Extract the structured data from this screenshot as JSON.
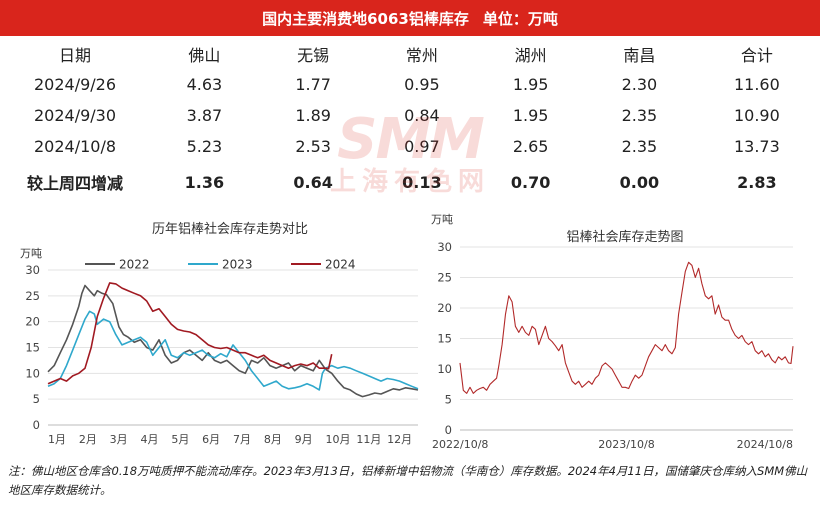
{
  "header": {
    "title": "国内主要消费地6063铝棒库存",
    "unit": "单位：万吨"
  },
  "table": {
    "columns": [
      "日期",
      "佛山",
      "无锡",
      "常州",
      "湖州",
      "南昌",
      "合计"
    ],
    "rows": [
      [
        "2024/9/26",
        "4.63",
        "1.77",
        "0.95",
        "1.95",
        "2.30",
        "11.60"
      ],
      [
        "2024/9/30",
        "3.87",
        "1.89",
        "0.84",
        "1.95",
        "2.35",
        "10.90"
      ],
      [
        "2024/10/8",
        "5.23",
        "2.53",
        "0.97",
        "2.65",
        "2.35",
        "13.73"
      ]
    ],
    "change_row": [
      "较上周四增减",
      "1.36",
      "0.64",
      "0.13",
      "0.70",
      "0.00",
      "2.83"
    ]
  },
  "watermark": {
    "text": "SMM",
    "subtext": "上海有色网"
  },
  "chart_data": [
    {
      "type": "line",
      "title": "历年铝棒社会库存走势对比",
      "ylabel": "万吨",
      "ylim": [
        0,
        30
      ],
      "yticks": [
        "0",
        "5",
        "10",
        "15",
        "20",
        "25",
        "30"
      ],
      "x_domain": [
        1,
        13
      ],
      "xticks": [
        "1月",
        "2月",
        "3月",
        "4月",
        "5月",
        "6月",
        "7月",
        "8月",
        "9月",
        "10月",
        "11月",
        "12月"
      ],
      "legend_position": "top",
      "series": [
        {
          "name": "2022",
          "color": "#555555",
          "x": [
            1.0,
            1.2,
            1.4,
            1.6,
            1.8,
            2.0,
            2.1,
            2.2,
            2.35,
            2.5,
            2.6,
            2.75,
            2.9,
            3.1,
            3.3,
            3.45,
            3.6,
            3.8,
            4.0,
            4.2,
            4.4,
            4.6,
            4.8,
            5.0,
            5.2,
            5.4,
            5.6,
            5.8,
            6.0,
            6.2,
            6.4,
            6.6,
            6.8,
            7.0,
            7.2,
            7.4,
            7.6,
            7.8,
            8.0,
            8.2,
            8.4,
            8.6,
            8.8,
            9.0,
            9.2,
            9.4,
            9.6,
            9.8,
            10.0,
            10.2,
            10.4,
            10.6,
            10.8,
            11.0,
            11.2,
            11.4,
            11.6,
            11.8,
            12.0,
            12.2,
            12.4,
            12.6,
            12.8,
            13.0
          ],
          "values": [
            10.3,
            11.5,
            14.0,
            16.5,
            19.5,
            23.0,
            25.5,
            27.0,
            26.0,
            25.0,
            26.0,
            25.5,
            25.2,
            23.5,
            19.0,
            17.5,
            17.0,
            16.0,
            16.5,
            15.0,
            14.5,
            16.5,
            13.5,
            12.0,
            12.5,
            14.0,
            14.5,
            13.5,
            12.5,
            14.0,
            12.5,
            12.0,
            12.5,
            11.5,
            10.5,
            10.0,
            12.5,
            12.0,
            13.0,
            11.5,
            11.0,
            11.5,
            12.0,
            10.5,
            11.5,
            11.0,
            10.5,
            12.5,
            10.8,
            10.0,
            8.5,
            7.2,
            6.8,
            6.0,
            5.5,
            5.8,
            6.2,
            6.0,
            6.5,
            7.0,
            6.8,
            7.2,
            7.0,
            6.8
          ]
        },
        {
          "name": "2023",
          "color": "#2fa8cc",
          "x": [
            1.0,
            1.2,
            1.4,
            1.6,
            1.8,
            2.0,
            2.1,
            2.2,
            2.35,
            2.5,
            2.6,
            2.8,
            3.0,
            3.2,
            3.4,
            3.6,
            3.8,
            4.0,
            4.2,
            4.4,
            4.6,
            4.8,
            5.0,
            5.2,
            5.4,
            5.6,
            5.8,
            6.0,
            6.2,
            6.4,
            6.6,
            6.8,
            7.0,
            7.2,
            7.4,
            7.6,
            7.8,
            8.0,
            8.2,
            8.4,
            8.6,
            8.8,
            9.0,
            9.2,
            9.4,
            9.6,
            9.8,
            9.9,
            10.0,
            10.2,
            10.4,
            10.6,
            10.8,
            11.0,
            11.2,
            11.4,
            11.6,
            11.8,
            12.0,
            12.2,
            12.4,
            12.6,
            12.8,
            13.0
          ],
          "values": [
            7.5,
            8.0,
            9.0,
            11.5,
            14.5,
            17.5,
            19.0,
            20.5,
            22.0,
            21.5,
            19.5,
            20.5,
            20.0,
            17.5,
            15.5,
            16.0,
            16.5,
            17.0,
            16.0,
            13.5,
            15.0,
            16.5,
            13.5,
            13.0,
            14.0,
            13.5,
            14.0,
            14.5,
            13.5,
            13.0,
            13.8,
            13.2,
            15.5,
            14.0,
            12.5,
            10.5,
            9.0,
            7.5,
            8.0,
            8.5,
            7.5,
            7.0,
            7.2,
            7.5,
            8.0,
            7.5,
            6.8,
            10.0,
            11.0,
            11.5,
            11.0,
            11.3,
            11.0,
            10.5,
            10.0,
            9.5,
            9.0,
            8.5,
            9.0,
            8.8,
            8.5,
            8.0,
            7.5,
            7.0
          ]
        },
        {
          "name": "2024",
          "color": "#a11a22",
          "x": [
            1.0,
            1.2,
            1.4,
            1.6,
            1.8,
            2.0,
            2.2,
            2.4,
            2.6,
            2.8,
            3.0,
            3.2,
            3.4,
            3.6,
            3.8,
            4.0,
            4.2,
            4.4,
            4.6,
            4.8,
            5.0,
            5.2,
            5.4,
            5.6,
            5.8,
            6.0,
            6.2,
            6.4,
            6.6,
            6.8,
            7.0,
            7.2,
            7.4,
            7.6,
            7.8,
            8.0,
            8.2,
            8.4,
            8.6,
            8.8,
            9.0,
            9.2,
            9.4,
            9.6,
            9.8,
            10.0,
            10.1,
            10.2
          ],
          "values": [
            8.0,
            8.5,
            9.0,
            8.5,
            9.5,
            10.0,
            11.0,
            15.0,
            21.0,
            24.5,
            27.5,
            27.3,
            26.5,
            26.0,
            25.5,
            25.0,
            24.0,
            22.0,
            22.5,
            21.0,
            19.5,
            18.5,
            18.2,
            18.0,
            17.5,
            16.5,
            15.5,
            15.0,
            14.8,
            15.0,
            14.5,
            14.0,
            14.0,
            13.5,
            13.0,
            13.5,
            12.5,
            12.0,
            11.5,
            11.0,
            11.5,
            11.8,
            11.5,
            12.0,
            11.0,
            11.0,
            10.9,
            13.7
          ]
        }
      ]
    },
    {
      "type": "line",
      "title": "铝棒社会库存走势图",
      "ylabel": "万吨",
      "ylim": [
        0,
        30
      ],
      "yticks": [
        "0",
        "5",
        "10",
        "15",
        "20",
        "25",
        "30"
      ],
      "xticks": [
        "2022/10/8",
        "2023/10/8",
        "2024/10/8"
      ],
      "x_domain": [
        2022.767,
        2024.767
      ],
      "series": [
        {
          "color": "#b22a2a",
          "x": [
            2022.767,
            2022.787,
            2022.807,
            2022.827,
            2022.847,
            2022.867,
            2022.887,
            2022.907,
            2022.927,
            2022.947,
            2022.967,
            2022.987,
            2023.0,
            2023.02,
            2023.04,
            2023.06,
            2023.08,
            2023.1,
            2023.12,
            2023.14,
            2023.16,
            2023.18,
            2023.2,
            2023.22,
            2023.24,
            2023.26,
            2023.28,
            2023.3,
            2023.32,
            2023.34,
            2023.36,
            2023.38,
            2023.4,
            2023.42,
            2023.44,
            2023.46,
            2023.48,
            2023.5,
            2023.52,
            2023.54,
            2023.56,
            2023.58,
            2023.6,
            2023.62,
            2023.64,
            2023.66,
            2023.68,
            2023.7,
            2023.72,
            2023.74,
            2023.76,
            2023.78,
            2023.8,
            2023.82,
            2023.84,
            2023.86,
            2023.88,
            2023.9,
            2023.92,
            2023.94,
            2023.96,
            2023.98,
            2024.0,
            2024.02,
            2024.04,
            2024.06,
            2024.08,
            2024.1,
            2024.12,
            2024.14,
            2024.16,
            2024.18,
            2024.2,
            2024.22,
            2024.24,
            2024.26,
            2024.28,
            2024.3,
            2024.32,
            2024.34,
            2024.36,
            2024.38,
            2024.4,
            2024.42,
            2024.44,
            2024.46,
            2024.48,
            2024.5,
            2024.52,
            2024.54,
            2024.56,
            2024.58,
            2024.6,
            2024.62,
            2024.64,
            2024.66,
            2024.68,
            2024.7,
            2024.72,
            2024.74,
            2024.755,
            2024.767
          ],
          "values": [
            11.0,
            6.5,
            6.0,
            7.0,
            6.0,
            6.5,
            6.8,
            7.0,
            6.5,
            7.5,
            8.0,
            8.5,
            10.5,
            14.0,
            19.0,
            22.0,
            21.0,
            17.0,
            16.0,
            17.0,
            16.0,
            15.5,
            17.0,
            16.5,
            14.0,
            15.5,
            17.0,
            15.0,
            14.5,
            13.8,
            13.0,
            14.0,
            11.0,
            9.5,
            8.0,
            7.5,
            8.0,
            7.0,
            7.5,
            8.0,
            7.5,
            8.5,
            9.0,
            10.5,
            11.0,
            10.5,
            10.0,
            9.0,
            8.0,
            7.0,
            7.0,
            6.8,
            8.0,
            9.0,
            8.5,
            9.0,
            10.5,
            12.0,
            13.0,
            14.0,
            13.5,
            13.0,
            14.0,
            13.0,
            12.5,
            13.5,
            19.0,
            22.5,
            26.0,
            27.5,
            27.0,
            25.0,
            26.5,
            24.0,
            22.0,
            21.5,
            22.0,
            19.0,
            20.5,
            18.5,
            18.0,
            18.0,
            16.5,
            15.5,
            15.0,
            15.5,
            14.5,
            14.0,
            14.5,
            13.0,
            12.5,
            13.0,
            12.0,
            12.5,
            11.5,
            11.0,
            12.0,
            11.5,
            12.0,
            11.0,
            10.9,
            13.73
          ]
        }
      ]
    }
  ],
  "footnote": "注：佛山地区仓库含0.18万吨质押不能流动库存。2023年3月13日，铝棒新增中铝物流（华南仓）库存数据。2024年4月11日，国储肇庆仓库纳入SMM佛山地区库存数据统计。"
}
